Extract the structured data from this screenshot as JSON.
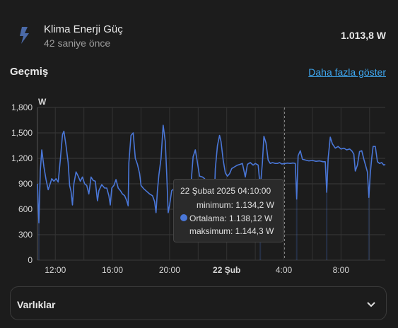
{
  "entity": {
    "name": "Klima Enerji Güç",
    "time_ago": "42 saniye önce",
    "value": "1.013,8 W",
    "icon": "lightning-bolt-icon"
  },
  "history": {
    "title": "Geçmiş",
    "more_link": "Daha fazla göster"
  },
  "chart_data": {
    "type": "line",
    "ylabel": "W",
    "ylim": [
      0,
      1800
    ],
    "yticks": [
      "0",
      "300",
      "600",
      "900",
      "1,200",
      "1,500",
      "1,800"
    ],
    "xticks": [
      {
        "label": "12:00",
        "hour": 12,
        "bold": false
      },
      {
        "label": "16:00",
        "hour": 16,
        "bold": false
      },
      {
        "label": "20:00",
        "hour": 20,
        "bold": false
      },
      {
        "label": "22 Şub",
        "hour": 24,
        "bold": true
      },
      {
        "label": "4:00",
        "hour": 28,
        "bold": false
      },
      {
        "label": "8:00",
        "hour": 32,
        "bold": false
      }
    ],
    "xrange_hours": [
      10.75,
      35.1
    ],
    "hover_hour": 28.05,
    "color": "#4a77d8",
    "series": [
      {
        "points": [
          [
            10.75,
            900
          ],
          [
            10.85,
            440
          ],
          [
            10.95,
            1050
          ],
          [
            11.05,
            1300
          ],
          [
            11.2,
            1100
          ],
          [
            11.35,
            950
          ],
          [
            11.5,
            830
          ],
          [
            11.6,
            880
          ],
          [
            11.75,
            960
          ],
          [
            11.9,
            930
          ],
          [
            12.05,
            960
          ],
          [
            12.2,
            920
          ],
          [
            12.35,
            1180
          ],
          [
            12.5,
            1480
          ],
          [
            12.6,
            1520
          ],
          [
            12.75,
            1350
          ],
          [
            12.9,
            1150
          ],
          [
            13.0,
            880
          ],
          [
            13.1,
            810
          ],
          [
            13.2,
            650
          ],
          [
            13.3,
            900
          ],
          [
            13.45,
            1040
          ],
          [
            13.6,
            990
          ],
          [
            13.75,
            930
          ],
          [
            13.9,
            980
          ],
          [
            14.05,
            900
          ],
          [
            14.2,
            880
          ],
          [
            14.35,
            780
          ],
          [
            14.5,
            980
          ],
          [
            14.65,
            940
          ],
          [
            14.8,
            930
          ],
          [
            14.95,
            700
          ],
          [
            15.05,
            820
          ],
          [
            15.25,
            890
          ],
          [
            15.45,
            850
          ],
          [
            15.6,
            850
          ],
          [
            15.75,
            760
          ],
          [
            15.85,
            650
          ],
          [
            15.95,
            850
          ],
          [
            16.1,
            880
          ],
          [
            16.25,
            950
          ],
          [
            16.4,
            850
          ],
          [
            16.55,
            820
          ],
          [
            16.7,
            780
          ],
          [
            16.85,
            760
          ],
          [
            17.0,
            700
          ],
          [
            17.1,
            640
          ],
          [
            17.15,
            1150
          ],
          [
            17.3,
            1470
          ],
          [
            17.45,
            1500
          ],
          [
            17.6,
            1200
          ],
          [
            17.75,
            1130
          ],
          [
            17.9,
            1020
          ],
          [
            18.0,
            880
          ],
          [
            18.2,
            840
          ],
          [
            18.4,
            810
          ],
          [
            18.6,
            780
          ],
          [
            18.8,
            760
          ],
          [
            18.95,
            690
          ],
          [
            19.05,
            560
          ],
          [
            19.15,
            820
          ],
          [
            19.25,
            1000
          ],
          [
            19.4,
            1200
          ],
          [
            19.55,
            1590
          ],
          [
            19.7,
            1400
          ],
          [
            19.8,
            1000
          ],
          [
            19.9,
            560
          ],
          [
            20.0,
            650
          ],
          [
            20.15,
            820
          ],
          [
            20.3,
            840
          ],
          [
            20.5,
            820
          ],
          [
            20.7,
            800
          ],
          [
            20.9,
            790
          ],
          [
            21.05,
            700
          ],
          [
            21.2,
            580
          ],
          [
            21.35,
            720
          ],
          [
            21.5,
            900
          ],
          [
            21.65,
            1220
          ],
          [
            21.8,
            1300
          ],
          [
            21.95,
            1150
          ],
          [
            22.1,
            990
          ],
          [
            22.3,
            980
          ],
          [
            22.45,
            960
          ],
          [
            22.6,
            920
          ],
          [
            22.75,
            890
          ],
          [
            22.9,
            850
          ],
          [
            23.0,
            780
          ],
          [
            23.1,
            560
          ],
          [
            23.2,
            1080
          ],
          [
            23.35,
            1350
          ],
          [
            23.5,
            1470
          ],
          [
            23.6,
            1400
          ],
          [
            23.75,
            1180
          ],
          [
            23.9,
            1030
          ],
          [
            24.05,
            990
          ],
          [
            24.2,
            1020
          ],
          [
            24.35,
            1080
          ],
          [
            24.55,
            1100
          ],
          [
            24.75,
            1120
          ],
          [
            24.95,
            1130
          ],
          [
            25.1,
            1140
          ],
          [
            25.3,
            980
          ],
          [
            25.45,
            1130
          ],
          [
            25.65,
            1150
          ],
          [
            25.85,
            1120
          ],
          [
            26.0,
            1140
          ],
          [
            26.2,
            1120
          ],
          [
            26.35,
            850
          ],
          [
            26.5,
            1150
          ],
          [
            26.6,
            1460
          ],
          [
            26.75,
            1380
          ],
          [
            26.9,
            1180
          ],
          [
            27.05,
            1140
          ],
          [
            27.2,
            1150
          ],
          [
            27.4,
            1140
          ],
          [
            27.55,
            1140
          ],
          [
            27.7,
            1150
          ],
          [
            27.85,
            1134
          ],
          [
            28.05,
            1138
          ],
          [
            28.25,
            1144
          ],
          [
            28.45,
            1140
          ],
          [
            28.65,
            1145
          ],
          [
            28.8,
            1140
          ],
          [
            28.9,
            720
          ],
          [
            29.0,
            1230
          ],
          [
            29.15,
            1290
          ],
          [
            29.3,
            1190
          ],
          [
            29.5,
            1180
          ],
          [
            29.75,
            1170
          ],
          [
            30.0,
            1175
          ],
          [
            30.25,
            1165
          ],
          [
            30.5,
            1170
          ],
          [
            30.75,
            1160
          ],
          [
            30.9,
            1160
          ],
          [
            31.0,
            800
          ],
          [
            31.1,
            1200
          ],
          [
            31.25,
            1450
          ],
          [
            31.4,
            1370
          ],
          [
            31.6,
            1320
          ],
          [
            31.8,
            1340
          ],
          [
            32.0,
            1310
          ],
          [
            32.2,
            1320
          ],
          [
            32.4,
            1300
          ],
          [
            32.6,
            1310
          ],
          [
            32.75,
            1290
          ],
          [
            32.9,
            1250
          ],
          [
            33.0,
            1050
          ],
          [
            33.15,
            1120
          ],
          [
            33.3,
            1280
          ],
          [
            33.45,
            1290
          ],
          [
            33.6,
            1190
          ],
          [
            33.75,
            1100
          ],
          [
            33.85,
            1040
          ],
          [
            33.95,
            740
          ],
          [
            34.05,
            1020
          ],
          [
            34.15,
            1200
          ],
          [
            34.25,
            1340
          ],
          [
            34.4,
            1340
          ],
          [
            34.55,
            1160
          ],
          [
            34.7,
            1140
          ],
          [
            34.85,
            1150
          ],
          [
            35.0,
            1120
          ],
          [
            35.1,
            1130
          ]
        ]
      }
    ]
  },
  "tooltip": {
    "title": "22 Şubat 2025 04:10:00",
    "min": "minimum: 1.134,2 W",
    "avg": "Ortalama: 1.138,12 W",
    "max": "maksimum: 1.144,3 W"
  },
  "assets": {
    "label": "Varlıklar",
    "icon": "chevron-down-icon"
  }
}
